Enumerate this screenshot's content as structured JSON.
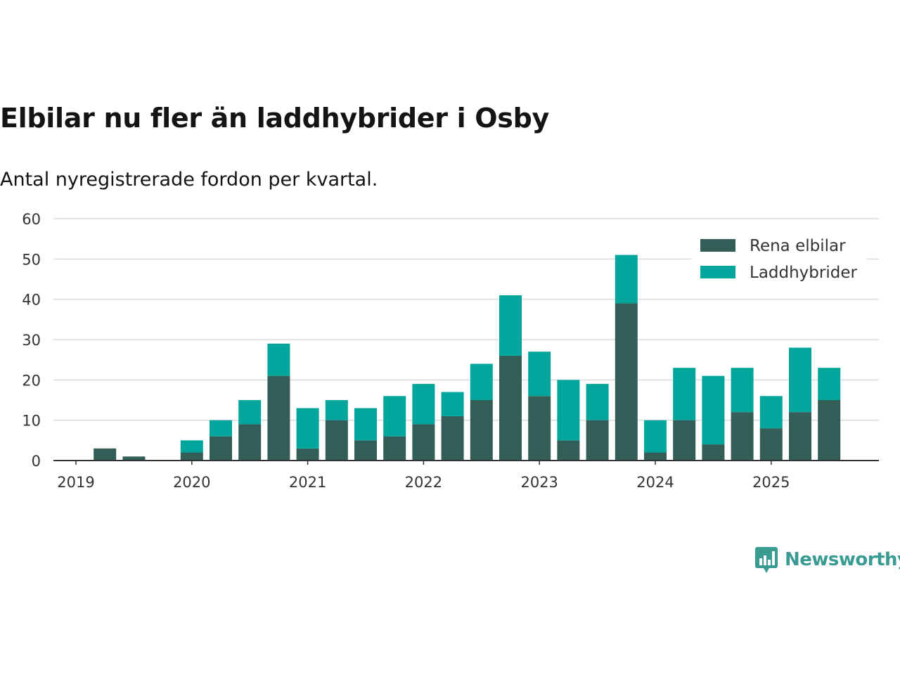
{
  "header": {
    "title": "Elbilar nu fler än laddhybrider i Osby",
    "subtitle": "Antal nyregistrerade fordon per kvartal."
  },
  "brand": {
    "name": "Newsworthy",
    "color": "#3a9b92"
  },
  "chart_data": {
    "type": "bar",
    "stacked": true,
    "title": "Elbilar nu fler än laddhybrider i Osby",
    "subtitle": "Antal nyregistrerade fordon per kvartal.",
    "xlabel": "",
    "ylabel": "",
    "ylim": [
      0,
      60
    ],
    "yticks": [
      0,
      10,
      20,
      30,
      40,
      50,
      60
    ],
    "grid": true,
    "legend_position": "top-right",
    "year_ticks": [
      {
        "label": "2019",
        "index": 0
      },
      {
        "label": "2020",
        "index": 4
      },
      {
        "label": "2021",
        "index": 8
      },
      {
        "label": "2022",
        "index": 12
      },
      {
        "label": "2023",
        "index": 16
      },
      {
        "label": "2024",
        "index": 20
      },
      {
        "label": "2025",
        "index": 24
      }
    ],
    "categories": [
      "2019 Q1",
      "2019 Q2",
      "2019 Q3",
      "2019 Q4",
      "2020 Q1",
      "2020 Q2",
      "2020 Q3",
      "2020 Q4",
      "2021 Q1",
      "2021 Q2",
      "2021 Q3",
      "2021 Q4",
      "2022 Q1",
      "2022 Q2",
      "2022 Q3",
      "2022 Q4",
      "2023 Q1",
      "2023 Q2",
      "2023 Q3",
      "2023 Q4",
      "2024 Q1",
      "2024 Q2",
      "2024 Q3",
      "2024 Q4",
      "2025 Q1",
      "2025 Q2",
      "2025 Q3"
    ],
    "series": [
      {
        "name": "Rena elbilar",
        "color": "#335e58",
        "values": [
          0,
          3,
          1,
          0,
          2,
          6,
          9,
          21,
          3,
          10,
          5,
          6,
          9,
          11,
          15,
          26,
          16,
          5,
          10,
          39,
          2,
          10,
          4,
          12,
          8,
          12,
          15
        ]
      },
      {
        "name": "Laddhybrider",
        "color": "#00a69c",
        "values": [
          0,
          0,
          0,
          0,
          3,
          4,
          6,
          8,
          10,
          5,
          8,
          10,
          10,
          6,
          9,
          15,
          11,
          15,
          9,
          12,
          8,
          13,
          17,
          11,
          8,
          16,
          8
        ]
      }
    ]
  }
}
